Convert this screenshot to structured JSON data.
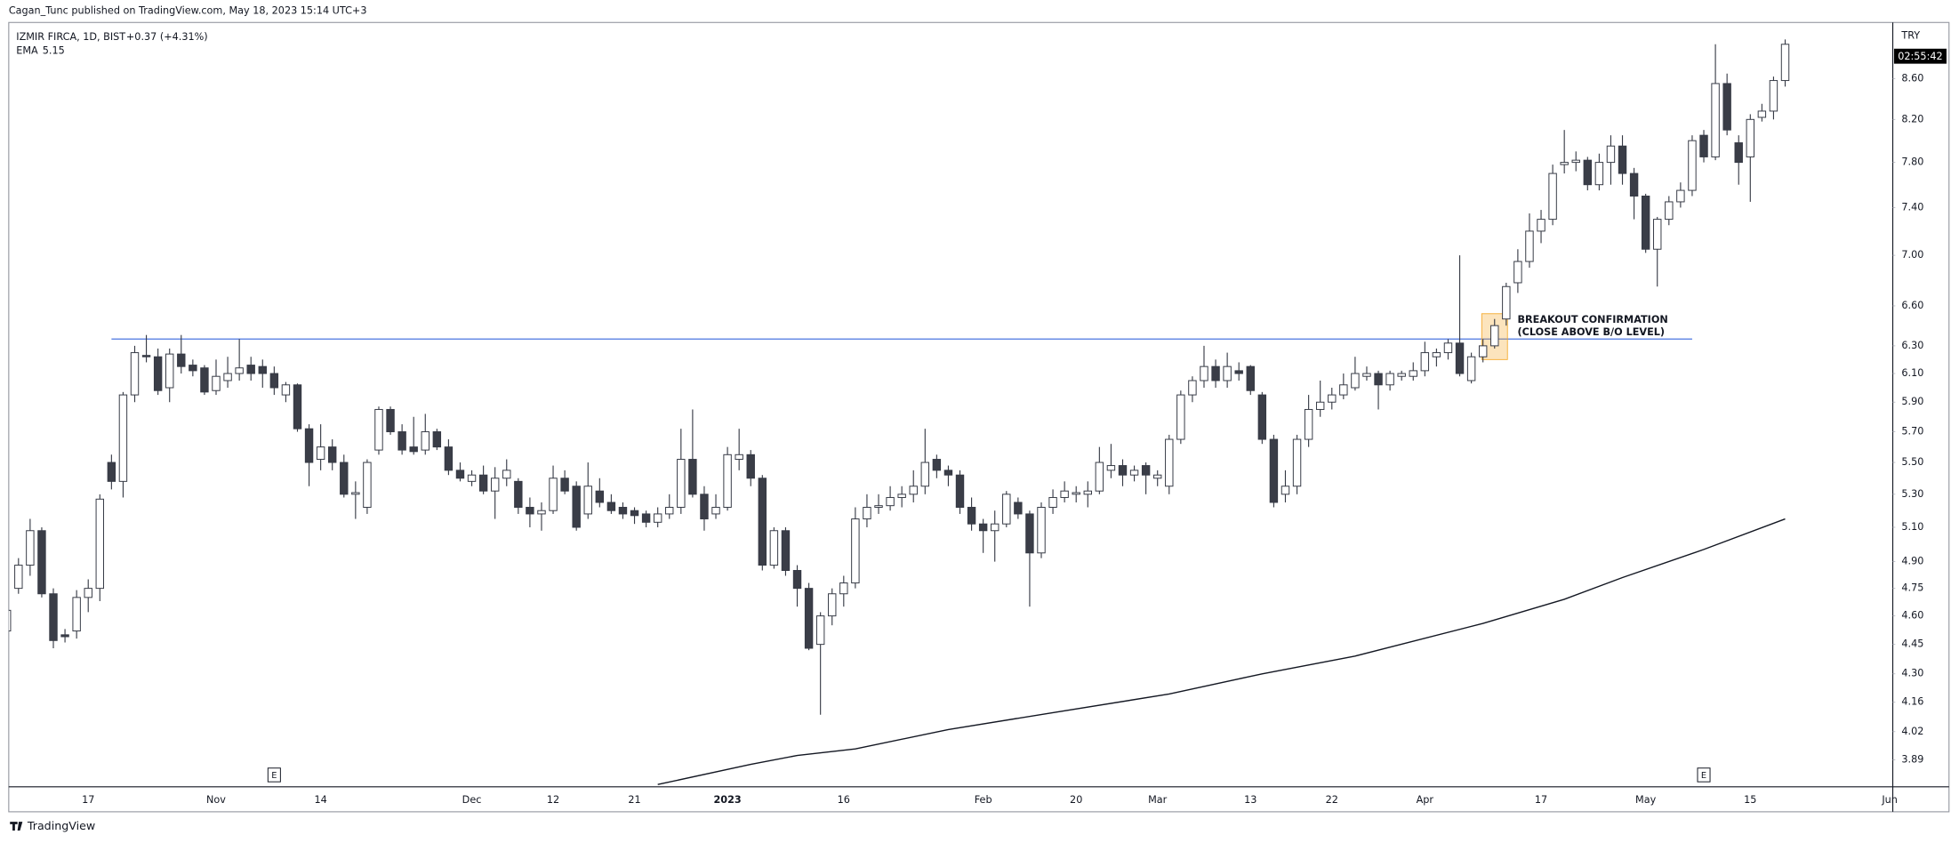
{
  "header": "Cagan_Tunc published on TradingView.com, May 18, 2023 15:14 UTC+3",
  "footer": "TradingView",
  "chart_data": {
    "type": "candlestick",
    "title": "IZMIR FIRCA, 1D, BIST",
    "change": "+0.37 (+4.31%)",
    "currency": "TRY",
    "countdown": "02:55:42",
    "log_scale": true,
    "grid": false,
    "up_color": "#ffffff",
    "down_color": "#3a3d47",
    "wick_color": "#363a45",
    "ylim": [
      3.77,
      9.18
    ],
    "yticks": [
      {
        "value": 3.89,
        "label": "3.89"
      },
      {
        "value": 4.02,
        "label": "4.02"
      },
      {
        "value": 4.16,
        "label": "4.16"
      },
      {
        "value": 4.3,
        "label": "4.30"
      },
      {
        "value": 4.45,
        "label": "4.45"
      },
      {
        "value": 4.6,
        "label": "4.60"
      },
      {
        "value": 4.75,
        "label": "4.75"
      },
      {
        "value": 4.9,
        "label": "4.90"
      },
      {
        "value": 5.1,
        "label": "5.10"
      },
      {
        "value": 5.3,
        "label": "5.30"
      },
      {
        "value": 5.5,
        "label": "5.50"
      },
      {
        "value": 5.7,
        "label": "5.70"
      },
      {
        "value": 5.9,
        "label": "5.90"
      },
      {
        "value": 6.1,
        "label": "6.10"
      },
      {
        "value": 6.3,
        "label": "6.30"
      },
      {
        "value": 6.6,
        "label": "6.60"
      },
      {
        "value": 7.0,
        "label": "7.00"
      },
      {
        "value": 7.4,
        "label": "7.40"
      },
      {
        "value": 7.8,
        "label": "7.80"
      },
      {
        "value": 8.2,
        "label": "8.20"
      },
      {
        "value": 8.6,
        "label": "8.60"
      }
    ],
    "categories": [
      null,
      null,
      null,
      null,
      null,
      null,
      null,
      "17",
      null,
      null,
      null,
      null,
      null,
      null,
      null,
      null,
      null,
      null,
      "Nov",
      null,
      null,
      null,
      null,
      null,
      null,
      null,
      null,
      "14",
      null,
      null,
      null,
      null,
      null,
      null,
      null,
      null,
      null,
      null,
      null,
      null,
      "Dec",
      null,
      null,
      null,
      null,
      null,
      null,
      "12",
      null,
      null,
      null,
      null,
      null,
      null,
      "21",
      null,
      null,
      null,
      null,
      null,
      null,
      null,
      "2023",
      null,
      null,
      null,
      null,
      null,
      null,
      null,
      null,
      null,
      "16",
      null,
      null,
      null,
      null,
      null,
      null,
      null,
      null,
      null,
      null,
      null,
      "Feb",
      null,
      null,
      null,
      null,
      null,
      null,
      null,
      "20",
      null,
      null,
      null,
      null,
      null,
      null,
      "Mar",
      null,
      null,
      null,
      null,
      null,
      null,
      null,
      "13",
      null,
      null,
      null,
      null,
      null,
      null,
      "22",
      null,
      null,
      null,
      null,
      null,
      null,
      null,
      "Apr",
      null,
      null,
      null,
      null,
      null,
      null,
      null,
      null,
      null,
      "17",
      null,
      null,
      null,
      null,
      null,
      null,
      null,
      null,
      "May",
      null,
      null,
      null,
      null,
      null,
      null,
      null,
      null,
      "15",
      null,
      null,
      null,
      null,
      null,
      null,
      null,
      null,
      null,
      null,
      null,
      "Jun"
    ],
    "values": [
      [
        4.52,
        4.64,
        4.5,
        4.63
      ],
      [
        4.75,
        4.92,
        4.72,
        4.88
      ],
      [
        4.88,
        5.15,
        4.82,
        5.08
      ],
      [
        5.08,
        5.1,
        4.7,
        4.72
      ],
      [
        4.72,
        4.75,
        4.43,
        4.47
      ],
      [
        4.5,
        4.53,
        4.46,
        4.49
      ],
      [
        4.52,
        4.74,
        4.48,
        4.7
      ],
      [
        4.7,
        4.8,
        4.62,
        4.75
      ],
      [
        4.75,
        5.3,
        4.68,
        5.27
      ],
      [
        5.5,
        5.55,
        5.33,
        5.38
      ],
      [
        5.38,
        5.97,
        5.28,
        5.95
      ],
      [
        5.95,
        6.3,
        5.9,
        6.25
      ],
      [
        6.23,
        6.38,
        6.18,
        6.22
      ],
      [
        6.22,
        6.28,
        5.95,
        5.98
      ],
      [
        6.0,
        6.28,
        5.9,
        6.24
      ],
      [
        6.24,
        6.38,
        6.1,
        6.15
      ],
      [
        6.16,
        6.2,
        6.08,
        6.12
      ],
      [
        6.14,
        6.16,
        5.95,
        5.97
      ],
      [
        5.98,
        6.2,
        5.95,
        6.08
      ],
      [
        6.05,
        6.22,
        6.0,
        6.1
      ],
      [
        6.1,
        6.35,
        6.05,
        6.14
      ],
      [
        6.16,
        6.22,
        6.05,
        6.1
      ],
      [
        6.15,
        6.2,
        6.0,
        6.1
      ],
      [
        6.1,
        6.15,
        5.95,
        6.0
      ],
      [
        5.95,
        6.04,
        5.9,
        6.02
      ],
      [
        6.02,
        6.03,
        5.7,
        5.72
      ],
      [
        5.72,
        5.75,
        5.35,
        5.5
      ],
      [
        5.52,
        5.75,
        5.45,
        5.6
      ],
      [
        5.6,
        5.65,
        5.45,
        5.5
      ],
      [
        5.5,
        5.55,
        5.28,
        5.3
      ],
      [
        5.3,
        5.38,
        5.15,
        5.31
      ],
      [
        5.22,
        5.52,
        5.18,
        5.5
      ],
      [
        5.58,
        5.87,
        5.55,
        5.85
      ],
      [
        5.85,
        5.87,
        5.68,
        5.7
      ],
      [
        5.7,
        5.75,
        5.55,
        5.58
      ],
      [
        5.6,
        5.8,
        5.55,
        5.57
      ],
      [
        5.58,
        5.82,
        5.55,
        5.7
      ],
      [
        5.7,
        5.72,
        5.58,
        5.6
      ],
      [
        5.6,
        5.65,
        5.42,
        5.45
      ],
      [
        5.45,
        5.5,
        5.38,
        5.4
      ],
      [
        5.38,
        5.45,
        5.35,
        5.42
      ],
      [
        5.42,
        5.48,
        5.3,
        5.32
      ],
      [
        5.32,
        5.47,
        5.15,
        5.4
      ],
      [
        5.4,
        5.52,
        5.35,
        5.45
      ],
      [
        5.38,
        5.4,
        5.18,
        5.22
      ],
      [
        5.22,
        5.28,
        5.1,
        5.18
      ],
      [
        5.18,
        5.25,
        5.08,
        5.2
      ],
      [
        5.2,
        5.48,
        5.18,
        5.4
      ],
      [
        5.4,
        5.45,
        5.3,
        5.32
      ],
      [
        5.35,
        5.38,
        5.08,
        5.1
      ],
      [
        5.18,
        5.5,
        5.15,
        5.35
      ],
      [
        5.32,
        5.4,
        5.22,
        5.25
      ],
      [
        5.25,
        5.3,
        5.18,
        5.2
      ],
      [
        5.22,
        5.25,
        5.15,
        5.18
      ],
      [
        5.2,
        5.22,
        5.12,
        5.17
      ],
      [
        5.18,
        5.2,
        5.1,
        5.13
      ],
      [
        5.13,
        5.22,
        5.1,
        5.18
      ],
      [
        5.18,
        5.3,
        5.15,
        5.22
      ],
      [
        5.22,
        5.72,
        5.18,
        5.52
      ],
      [
        5.52,
        5.85,
        5.28,
        5.3
      ],
      [
        5.3,
        5.35,
        5.08,
        5.15
      ],
      [
        5.18,
        5.3,
        5.15,
        5.22
      ],
      [
        5.22,
        5.6,
        5.2,
        5.55
      ],
      [
        5.52,
        5.72,
        5.45,
        5.55
      ],
      [
        5.55,
        5.58,
        5.35,
        5.4
      ],
      [
        5.4,
        5.42,
        4.85,
        4.88
      ],
      [
        4.88,
        5.1,
        4.86,
        5.08
      ],
      [
        5.08,
        5.1,
        4.82,
        4.85
      ],
      [
        4.85,
        4.88,
        4.65,
        4.75
      ],
      [
        4.75,
        4.78,
        4.42,
        4.43
      ],
      [
        4.45,
        4.62,
        4.1,
        4.6
      ],
      [
        4.6,
        4.75,
        4.55,
        4.72
      ],
      [
        4.72,
        4.82,
        4.65,
        4.78
      ],
      [
        4.78,
        5.22,
        4.75,
        5.15
      ],
      [
        5.15,
        5.3,
        5.1,
        5.22
      ],
      [
        5.22,
        5.3,
        5.18,
        5.23
      ],
      [
        5.23,
        5.35,
        5.2,
        5.28
      ],
      [
        5.28,
        5.35,
        5.22,
        5.3
      ],
      [
        5.3,
        5.45,
        5.25,
        5.35
      ],
      [
        5.35,
        5.72,
        5.3,
        5.5
      ],
      [
        5.52,
        5.55,
        5.4,
        5.45
      ],
      [
        5.45,
        5.48,
        5.35,
        5.42
      ],
      [
        5.42,
        5.45,
        5.18,
        5.22
      ],
      [
        5.22,
        5.28,
        5.08,
        5.12
      ],
      [
        5.12,
        5.15,
        4.95,
        5.08
      ],
      [
        5.08,
        5.2,
        4.9,
        5.12
      ],
      [
        5.12,
        5.32,
        5.1,
        5.3
      ],
      [
        5.25,
        5.28,
        5.15,
        5.18
      ],
      [
        5.18,
        5.2,
        4.65,
        4.95
      ],
      [
        4.95,
        5.25,
        4.92,
        5.22
      ],
      [
        5.22,
        5.33,
        5.18,
        5.28
      ],
      [
        5.28,
        5.38,
        5.25,
        5.32
      ],
      [
        5.3,
        5.35,
        5.25,
        5.31
      ],
      [
        5.3,
        5.38,
        5.22,
        5.32
      ],
      [
        5.32,
        5.6,
        5.3,
        5.5
      ],
      [
        5.45,
        5.62,
        5.4,
        5.48
      ],
      [
        5.48,
        5.52,
        5.35,
        5.42
      ],
      [
        5.42,
        5.48,
        5.38,
        5.45
      ],
      [
        5.48,
        5.5,
        5.3,
        5.42
      ],
      [
        5.4,
        5.45,
        5.35,
        5.42
      ],
      [
        5.35,
        5.68,
        5.3,
        5.65
      ],
      [
        5.65,
        5.98,
        5.62,
        5.95
      ],
      [
        5.95,
        6.08,
        5.9,
        6.05
      ],
      [
        6.05,
        6.3,
        6.0,
        6.15
      ],
      [
        6.15,
        6.2,
        6.0,
        6.05
      ],
      [
        6.05,
        6.25,
        6.0,
        6.15
      ],
      [
        6.12,
        6.18,
        6.05,
        6.1
      ],
      [
        6.15,
        6.16,
        5.95,
        5.98
      ],
      [
        5.95,
        5.97,
        5.62,
        5.65
      ],
      [
        5.65,
        5.68,
        5.22,
        5.25
      ],
      [
        5.3,
        5.45,
        5.25,
        5.35
      ],
      [
        5.35,
        5.68,
        5.3,
        5.65
      ],
      [
        5.65,
        5.95,
        5.6,
        5.85
      ],
      [
        5.85,
        6.05,
        5.8,
        5.9
      ],
      [
        5.9,
        6.0,
        5.85,
        5.95
      ],
      [
        5.95,
        6.1,
        5.92,
        6.02
      ],
      [
        6.0,
        6.22,
        5.98,
        6.1
      ],
      [
        6.08,
        6.15,
        6.05,
        6.1
      ],
      [
        6.1,
        6.12,
        5.85,
        6.02
      ],
      [
        6.02,
        6.12,
        5.98,
        6.1
      ],
      [
        6.08,
        6.12,
        6.05,
        6.1
      ],
      [
        6.08,
        6.18,
        6.05,
        6.12
      ],
      [
        6.12,
        6.33,
        6.08,
        6.25
      ],
      [
        6.22,
        6.28,
        6.15,
        6.25
      ],
      [
        6.25,
        6.35,
        6.2,
        6.32
      ],
      [
        6.32,
        7.0,
        6.08,
        6.1
      ],
      [
        6.05,
        6.25,
        6.03,
        6.22
      ],
      [
        6.22,
        6.35,
        6.18,
        6.3
      ],
      [
        6.3,
        6.5,
        6.28,
        6.45
      ],
      [
        6.5,
        6.78,
        6.45,
        6.75
      ],
      [
        6.78,
        7.05,
        6.7,
        6.95
      ],
      [
        6.95,
        7.35,
        6.9,
        7.2
      ],
      [
        7.2,
        7.38,
        7.1,
        7.3
      ],
      [
        7.3,
        7.78,
        7.25,
        7.7
      ],
      [
        7.78,
        8.1,
        7.7,
        7.8
      ],
      [
        7.8,
        7.9,
        7.72,
        7.82
      ],
      [
        7.82,
        7.85,
        7.55,
        7.6
      ],
      [
        7.6,
        7.88,
        7.55,
        7.8
      ],
      [
        7.8,
        8.05,
        7.6,
        7.95
      ],
      [
        7.95,
        8.05,
        7.6,
        7.7
      ],
      [
        7.7,
        7.75,
        7.3,
        7.5
      ],
      [
        7.5,
        7.52,
        7.02,
        7.05
      ],
      [
        7.05,
        7.32,
        6.75,
        7.3
      ],
      [
        7.3,
        7.5,
        7.25,
        7.45
      ],
      [
        7.45,
        7.62,
        7.4,
        7.55
      ],
      [
        7.55,
        8.05,
        7.5,
        8.0
      ],
      [
        8.05,
        8.1,
        7.8,
        7.85
      ],
      [
        7.85,
        8.95,
        7.82,
        8.55
      ],
      [
        8.55,
        8.65,
        8.05,
        8.1
      ],
      [
        7.98,
        8.05,
        7.6,
        7.8
      ],
      [
        7.85,
        8.25,
        7.45,
        8.2
      ],
      [
        8.22,
        8.35,
        8.18,
        8.28
      ],
      [
        8.28,
        8.62,
        8.2,
        8.58
      ],
      [
        8.58,
        9.0,
        8.52,
        8.95
      ],
      null,
      null,
      null,
      null,
      null,
      null,
      null,
      null,
      null
    ],
    "overlays": [
      {
        "type": "line",
        "name": "EMA",
        "color": "#131722",
        "x": [
          56,
          64,
          68,
          73,
          81,
          90,
          100,
          108,
          116,
          127,
          134,
          139,
          146,
          153
        ],
        "values": [
          3.78,
          3.87,
          3.91,
          3.94,
          4.03,
          4.11,
          4.2,
          4.3,
          4.39,
          4.56,
          4.69,
          4.81,
          4.97,
          5.15
        ]
      }
    ],
    "hline": {
      "value": 6.35,
      "x": [
        9,
        145
      ],
      "color": "#4a74e0"
    },
    "annotation": {
      "text": [
        "BREAKOUT CONFIRMATION",
        "(CLOSE ABOVE B/O LEVEL)"
      ],
      "x": [
        127,
        129
      ],
      "y": [
        6.2,
        6.54
      ],
      "color": "#f5a623"
    },
    "events": [
      {
        "x": 23,
        "label": "E"
      },
      {
        "x": 146,
        "label": "E"
      }
    ]
  }
}
